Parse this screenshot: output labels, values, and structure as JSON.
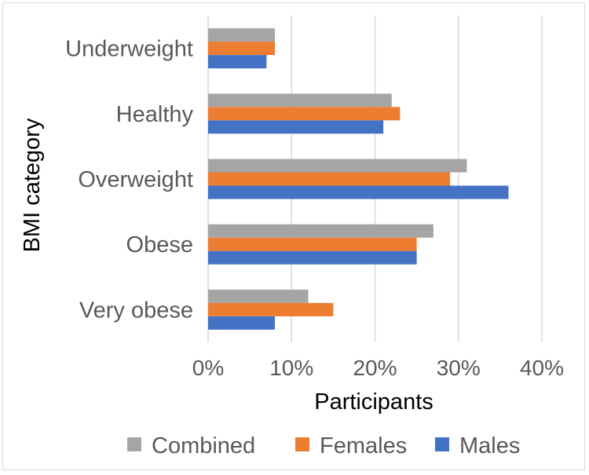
{
  "chart_data": {
    "type": "bar",
    "orientation": "horizontal",
    "title": "",
    "xlabel": "Participants",
    "ylabel": "BMI category",
    "categories": [
      "Underweight",
      "Healthy",
      "Overweight",
      "Obese",
      "Very obese"
    ],
    "series": [
      {
        "name": "Combined",
        "color": "#a5a5a5",
        "values": [
          8,
          22,
          31,
          27,
          12
        ]
      },
      {
        "name": "Females",
        "color": "#ed7d31",
        "values": [
          8,
          23,
          29,
          25,
          15
        ]
      },
      {
        "name": "Males",
        "color": "#4472c4",
        "values": [
          7,
          21,
          36,
          25,
          8
        ]
      }
    ],
    "xlim": [
      0,
      40
    ],
    "xticks": [
      "0%",
      "10%",
      "20%",
      "30%",
      "40%"
    ],
    "grid": true,
    "legend_position": "bottom",
    "colors": {
      "grid": "#d9d9d9",
      "text": "#595959",
      "axis_title": "#000000"
    }
  }
}
